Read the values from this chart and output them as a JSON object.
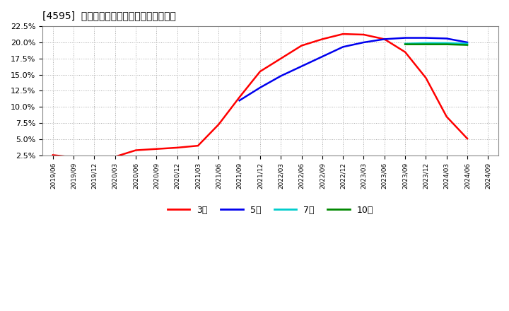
{
  "title": "[4595]  経常利益マージンの標準偏差の推移",
  "background_color": "#ffffff",
  "plot_bg_color": "#ffffff",
  "grid_color": "#aaaaaa",
  "ylim": [
    0.025,
    0.225
  ],
  "yticks": [
    0.025,
    0.05,
    0.075,
    0.1,
    0.125,
    0.15,
    0.175,
    0.2,
    0.225
  ],
  "series": {
    "3年": {
      "color": "#ff0000",
      "x": [
        0,
        1,
        2,
        3,
        4,
        5,
        6,
        7,
        8,
        9,
        10,
        11,
        12,
        13,
        14,
        15,
        16,
        17,
        18,
        19,
        20
      ],
      "values": [
        0.0255,
        0.022,
        0.021,
        0.023,
        0.033,
        0.035,
        0.037,
        0.04,
        0.073,
        0.115,
        0.155,
        0.175,
        0.195,
        0.205,
        0.213,
        0.212,
        0.205,
        0.185,
        0.145,
        0.085,
        0.051
      ]
    },
    "5年": {
      "color": "#0000ee",
      "x": [
        9,
        10,
        11,
        12,
        13,
        14,
        15,
        16,
        17,
        18,
        19,
        20
      ],
      "values": [
        0.11,
        0.13,
        0.148,
        0.163,
        0.178,
        0.193,
        0.2,
        0.205,
        0.207,
        0.207,
        0.206,
        0.2
      ]
    },
    "7年": {
      "color": "#00cccc",
      "x": [
        17,
        18,
        19,
        20
      ],
      "values": [
        0.198,
        0.199,
        0.199,
        0.198
      ]
    },
    "10年": {
      "color": "#008800",
      "x": [
        17,
        18,
        19,
        20
      ],
      "values": [
        0.197,
        0.197,
        0.197,
        0.196
      ]
    }
  },
  "x_tick_labels": [
    "2019/06",
    "2019/09",
    "2019/12",
    "2020/03",
    "2020/06",
    "2020/09",
    "2020/12",
    "2021/03",
    "2021/06",
    "2021/09",
    "2021/12",
    "2022/03",
    "2022/06",
    "2022/09",
    "2022/12",
    "2023/03",
    "2023/06",
    "2023/09",
    "2023/12",
    "2024/03",
    "2024/06",
    "2024/09"
  ],
  "legend_entries": [
    "3年",
    "5年",
    "7年",
    "10年"
  ],
  "legend_colors": [
    "#ff0000",
    "#0000ee",
    "#00cccc",
    "#008800"
  ]
}
